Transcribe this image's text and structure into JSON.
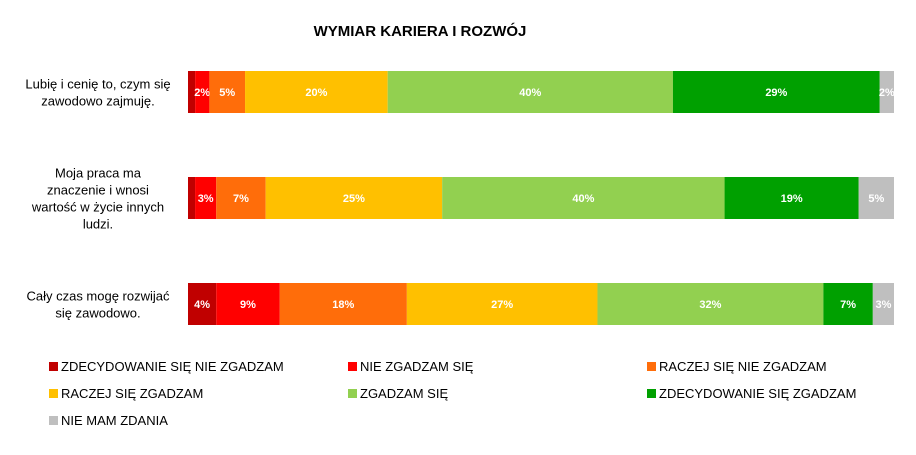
{
  "chart_data": {
    "type": "bar",
    "orientation": "horizontal",
    "stacked": true,
    "title": "WYMIAR KARIERA I ROZWÓJ",
    "categories": [
      [
        "Lubię i cenię to, czym się",
        "zawodowo zajmuję."
      ],
      [
        "Moja praca ma",
        "znaczenie i wnosi",
        "wartość w życie innych",
        "ludzi."
      ],
      [
        "Cały czas mogę rozwijać",
        "się zawodowo."
      ]
    ],
    "xlim": [
      0,
      100
    ],
    "grid": false,
    "legend_position": "bottom",
    "series": [
      {
        "name": "ZDECYDOWANIE SIĘ NIE ZGADZAM",
        "color": "#c00000",
        "values": [
          1,
          1,
          4
        ],
        "labels": [
          "",
          "",
          "4%"
        ]
      },
      {
        "name": "NIE ZGADZAM SIĘ",
        "color": "#ff0000",
        "values": [
          2,
          3,
          9
        ],
        "labels": [
          "2%",
          "3%",
          "9%"
        ]
      },
      {
        "name": "RACZEJ SIĘ NIE ZGADZAM",
        "color": "#ff6d0a",
        "values": [
          5,
          7,
          18
        ],
        "labels": [
          "5%",
          "7%",
          "18%"
        ]
      },
      {
        "name": "RACZEJ SIĘ ZGADZAM",
        "color": "#ffc000",
        "values": [
          20,
          25,
          27
        ],
        "labels": [
          "20%",
          "25%",
          "27%"
        ]
      },
      {
        "name": "ZGADZAM SIĘ",
        "color": "#92d050",
        "values": [
          40,
          40,
          32
        ],
        "labels": [
          "40%",
          "40%",
          "32%"
        ]
      },
      {
        "name": "ZDECYDOWANIE SIĘ ZGADZAM",
        "color": "#00a000",
        "values": [
          29,
          19,
          7
        ],
        "labels": [
          "29%",
          "19%",
          "7%"
        ]
      },
      {
        "name": "NIE MAM ZDANIA",
        "color": "#bfbfbf",
        "values": [
          2,
          5,
          3
        ],
        "labels": [
          "2%",
          "5%",
          "3%"
        ]
      }
    ]
  }
}
